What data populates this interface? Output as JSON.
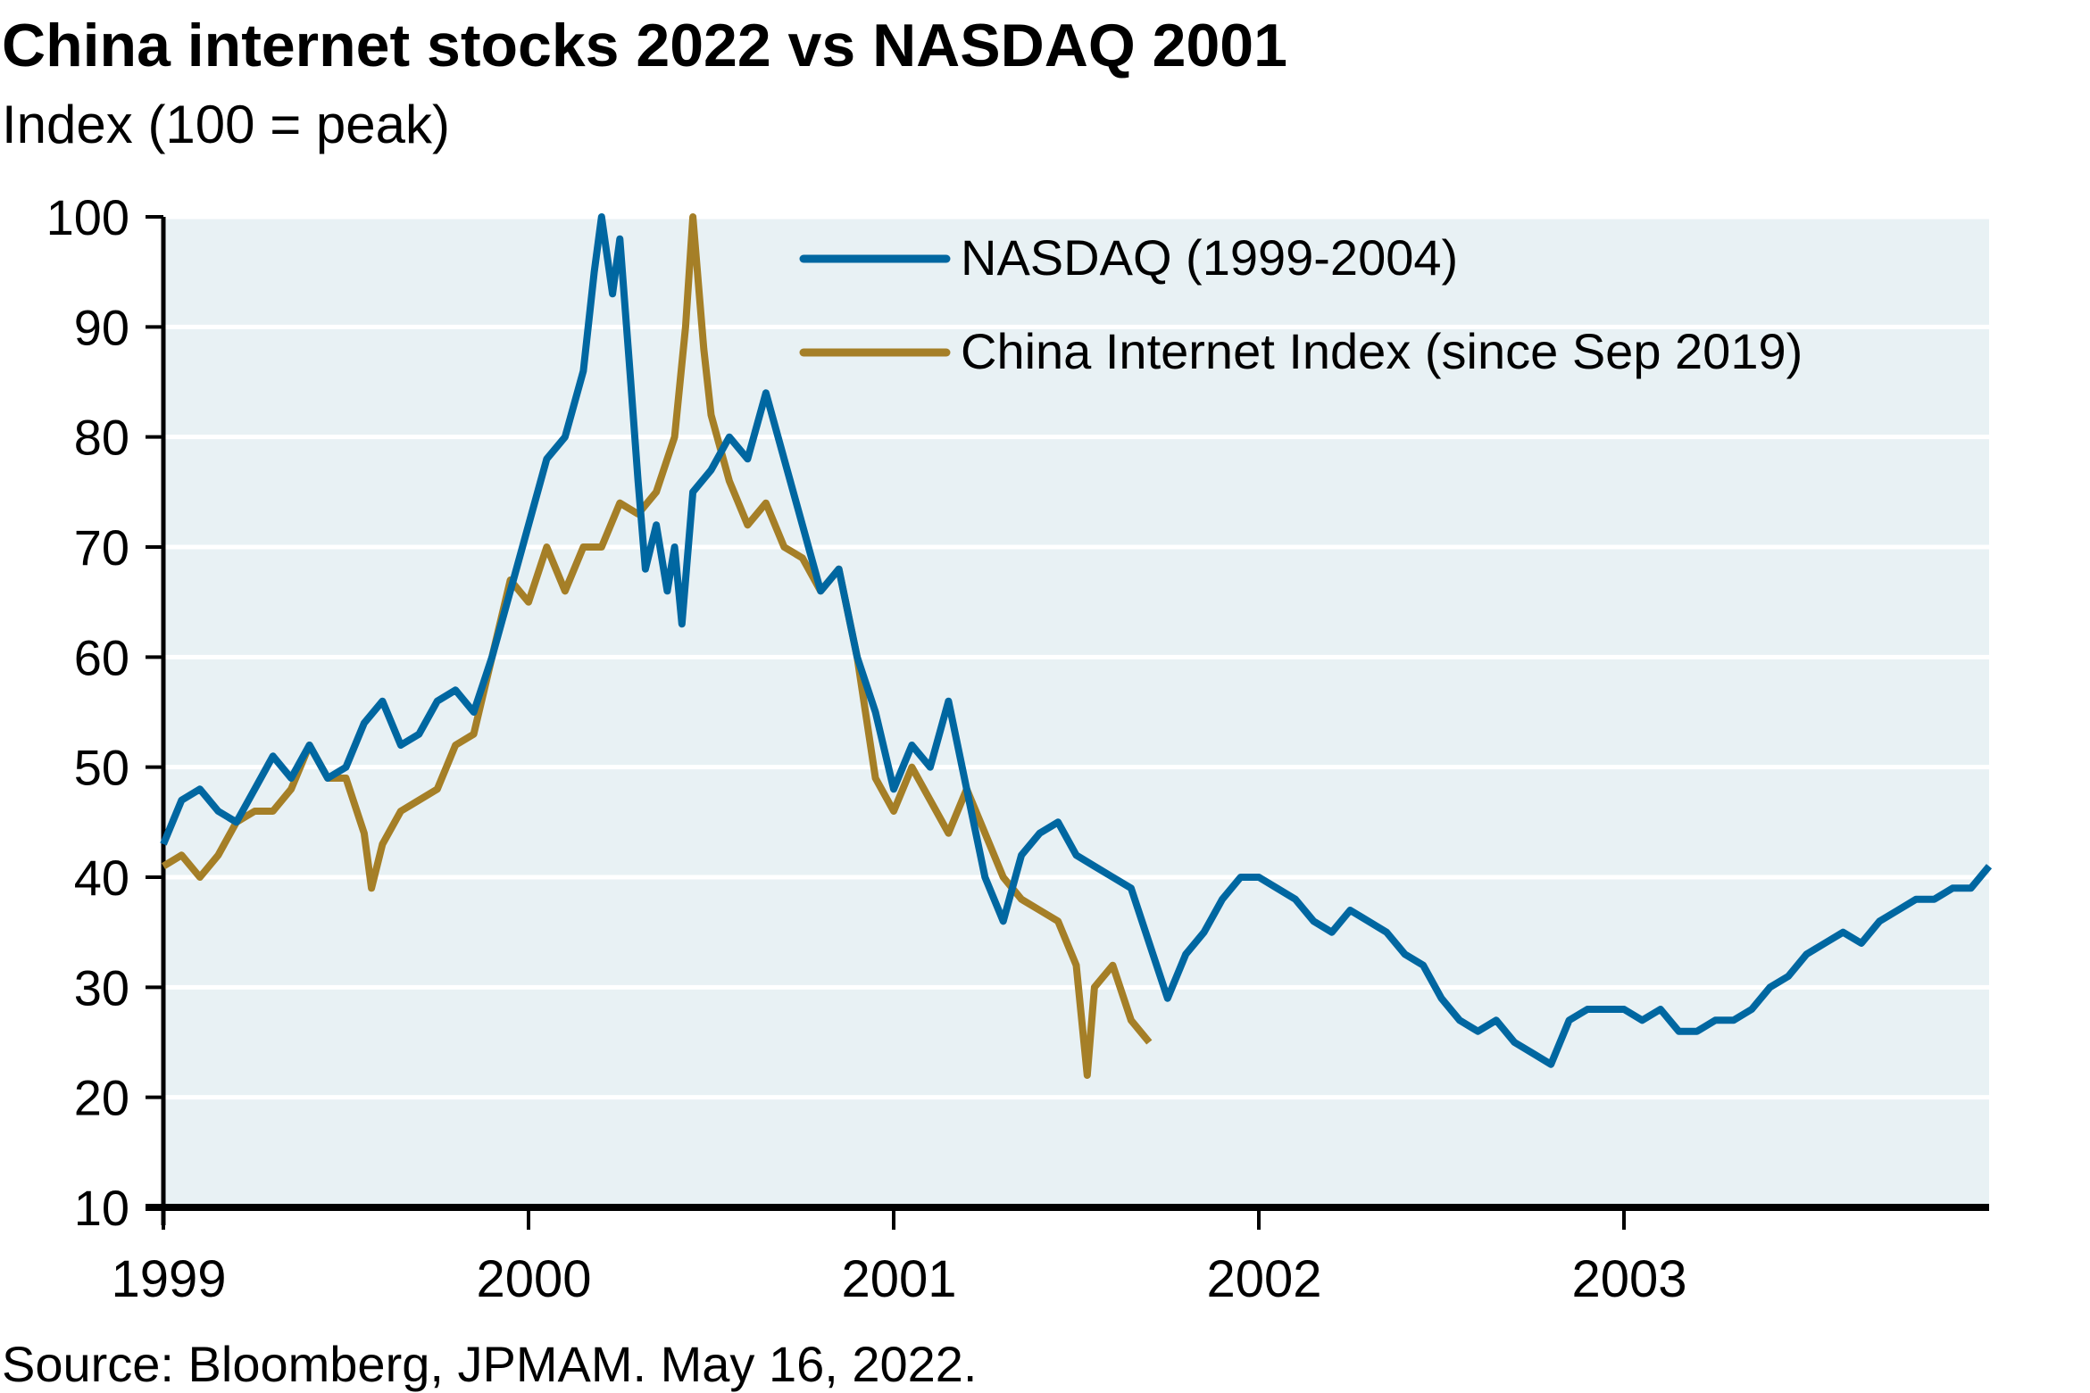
{
  "chart_data": {
    "type": "line",
    "title": "China internet stocks 2022 vs NASDAQ 2001",
    "subtitle": "Index (100 = peak)",
    "source": "Source: Bloomberg, JPMAM. May 16, 2022.",
    "xlabel": "",
    "ylabel": "",
    "xlim": [
      1999,
      2004
    ],
    "ylim": [
      10,
      100
    ],
    "x_ticks": [
      "1999",
      "2000",
      "2001",
      "2002",
      "2003"
    ],
    "y_ticks": [
      "10",
      "20",
      "30",
      "40",
      "50",
      "60",
      "70",
      "80",
      "90",
      "100"
    ],
    "grid": true,
    "legend_position": "top-right",
    "colors": {
      "background": "#e8f1f4",
      "nasdaq": "#0067a1",
      "china": "#a57f27"
    },
    "series": [
      {
        "name": "NASDAQ (1999-2004)",
        "color": "#0067a1",
        "x": [
          1999.0,
          1999.05,
          1999.1,
          1999.15,
          1999.2,
          1999.25,
          1999.3,
          1999.35,
          1999.4,
          1999.45,
          1999.5,
          1999.55,
          1999.6,
          1999.65,
          1999.7,
          1999.75,
          1999.8,
          1999.85,
          1999.9,
          1999.95,
          2000.0,
          2000.05,
          2000.1,
          2000.15,
          2000.18,
          2000.2,
          2000.23,
          2000.25,
          2000.28,
          2000.3,
          2000.32,
          2000.35,
          2000.38,
          2000.4,
          2000.42,
          2000.45,
          2000.5,
          2000.55,
          2000.6,
          2000.65,
          2000.7,
          2000.75,
          2000.8,
          2000.85,
          2000.9,
          2000.95,
          2001.0,
          2001.05,
          2001.1,
          2001.15,
          2001.2,
          2001.25,
          2001.3,
          2001.35,
          2001.4,
          2001.45,
          2001.5,
          2001.55,
          2001.6,
          2001.65,
          2001.7,
          2001.75,
          2001.8,
          2001.85,
          2001.9,
          2001.95,
          2002.0,
          2002.05,
          2002.1,
          2002.15,
          2002.2,
          2002.25,
          2002.3,
          2002.35,
          2002.4,
          2002.45,
          2002.5,
          2002.55,
          2002.6,
          2002.65,
          2002.7,
          2002.75,
          2002.8,
          2002.85,
          2002.9,
          2002.95,
          2003.0,
          2003.05,
          2003.1,
          2003.15,
          2003.2,
          2003.25,
          2003.3,
          2003.35,
          2003.4,
          2003.45,
          2003.5,
          2003.55,
          2003.6,
          2003.65,
          2003.7,
          2003.75,
          2003.8,
          2003.85,
          2003.9,
          2003.95,
          2004.0
        ],
        "values": [
          43,
          47,
          48,
          46,
          45,
          48,
          51,
          49,
          52,
          49,
          50,
          54,
          56,
          52,
          53,
          56,
          57,
          55,
          60,
          66,
          72,
          78,
          80,
          86,
          95,
          100,
          93,
          98,
          85,
          76,
          68,
          72,
          66,
          70,
          63,
          75,
          77,
          80,
          78,
          84,
          78,
          72,
          66,
          68,
          60,
          55,
          48,
          52,
          50,
          56,
          48,
          40,
          36,
          42,
          44,
          45,
          42,
          41,
          40,
          39,
          34,
          29,
          33,
          35,
          38,
          40,
          40,
          39,
          38,
          36,
          35,
          37,
          36,
          35,
          33,
          32,
          29,
          27,
          26,
          27,
          25,
          24,
          23,
          27,
          28,
          28,
          28,
          27,
          28,
          26,
          26,
          27,
          27,
          28,
          30,
          31,
          33,
          34,
          35,
          34,
          36,
          37,
          38,
          38,
          39,
          39,
          41
        ]
      },
      {
        "name": "China Internet Index (since Sep 2019)",
        "color": "#a57f27",
        "x": [
          1999.0,
          1999.05,
          1999.1,
          1999.15,
          1999.2,
          1999.25,
          1999.3,
          1999.35,
          1999.4,
          1999.45,
          1999.5,
          1999.55,
          1999.57,
          1999.6,
          1999.65,
          1999.7,
          1999.75,
          1999.8,
          1999.85,
          1999.9,
          1999.95,
          2000.0,
          2000.05,
          2000.1,
          2000.15,
          2000.2,
          2000.25,
          2000.3,
          2000.35,
          2000.4,
          2000.43,
          2000.45,
          2000.48,
          2000.5,
          2000.55,
          2000.6,
          2000.65,
          2000.7,
          2000.75,
          2000.8,
          2000.85,
          2000.9,
          2000.95,
          2001.0,
          2001.05,
          2001.1,
          2001.15,
          2001.2,
          2001.25,
          2001.3,
          2001.35,
          2001.4,
          2001.45,
          2001.5,
          2001.53,
          2001.55,
          2001.6,
          2001.65,
          2001.7
        ],
        "values": [
          41,
          42,
          40,
          42,
          45,
          46,
          46,
          48,
          52,
          49,
          49,
          44,
          39,
          43,
          46,
          47,
          48,
          52,
          53,
          60,
          67,
          65,
          70,
          66,
          70,
          70,
          74,
          73,
          75,
          80,
          90,
          100,
          88,
          82,
          76,
          72,
          74,
          70,
          69,
          66,
          68,
          60,
          49,
          46,
          50,
          47,
          44,
          48,
          44,
          40,
          38,
          37,
          36,
          32,
          22,
          30,
          32,
          27,
          25
        ]
      }
    ]
  }
}
